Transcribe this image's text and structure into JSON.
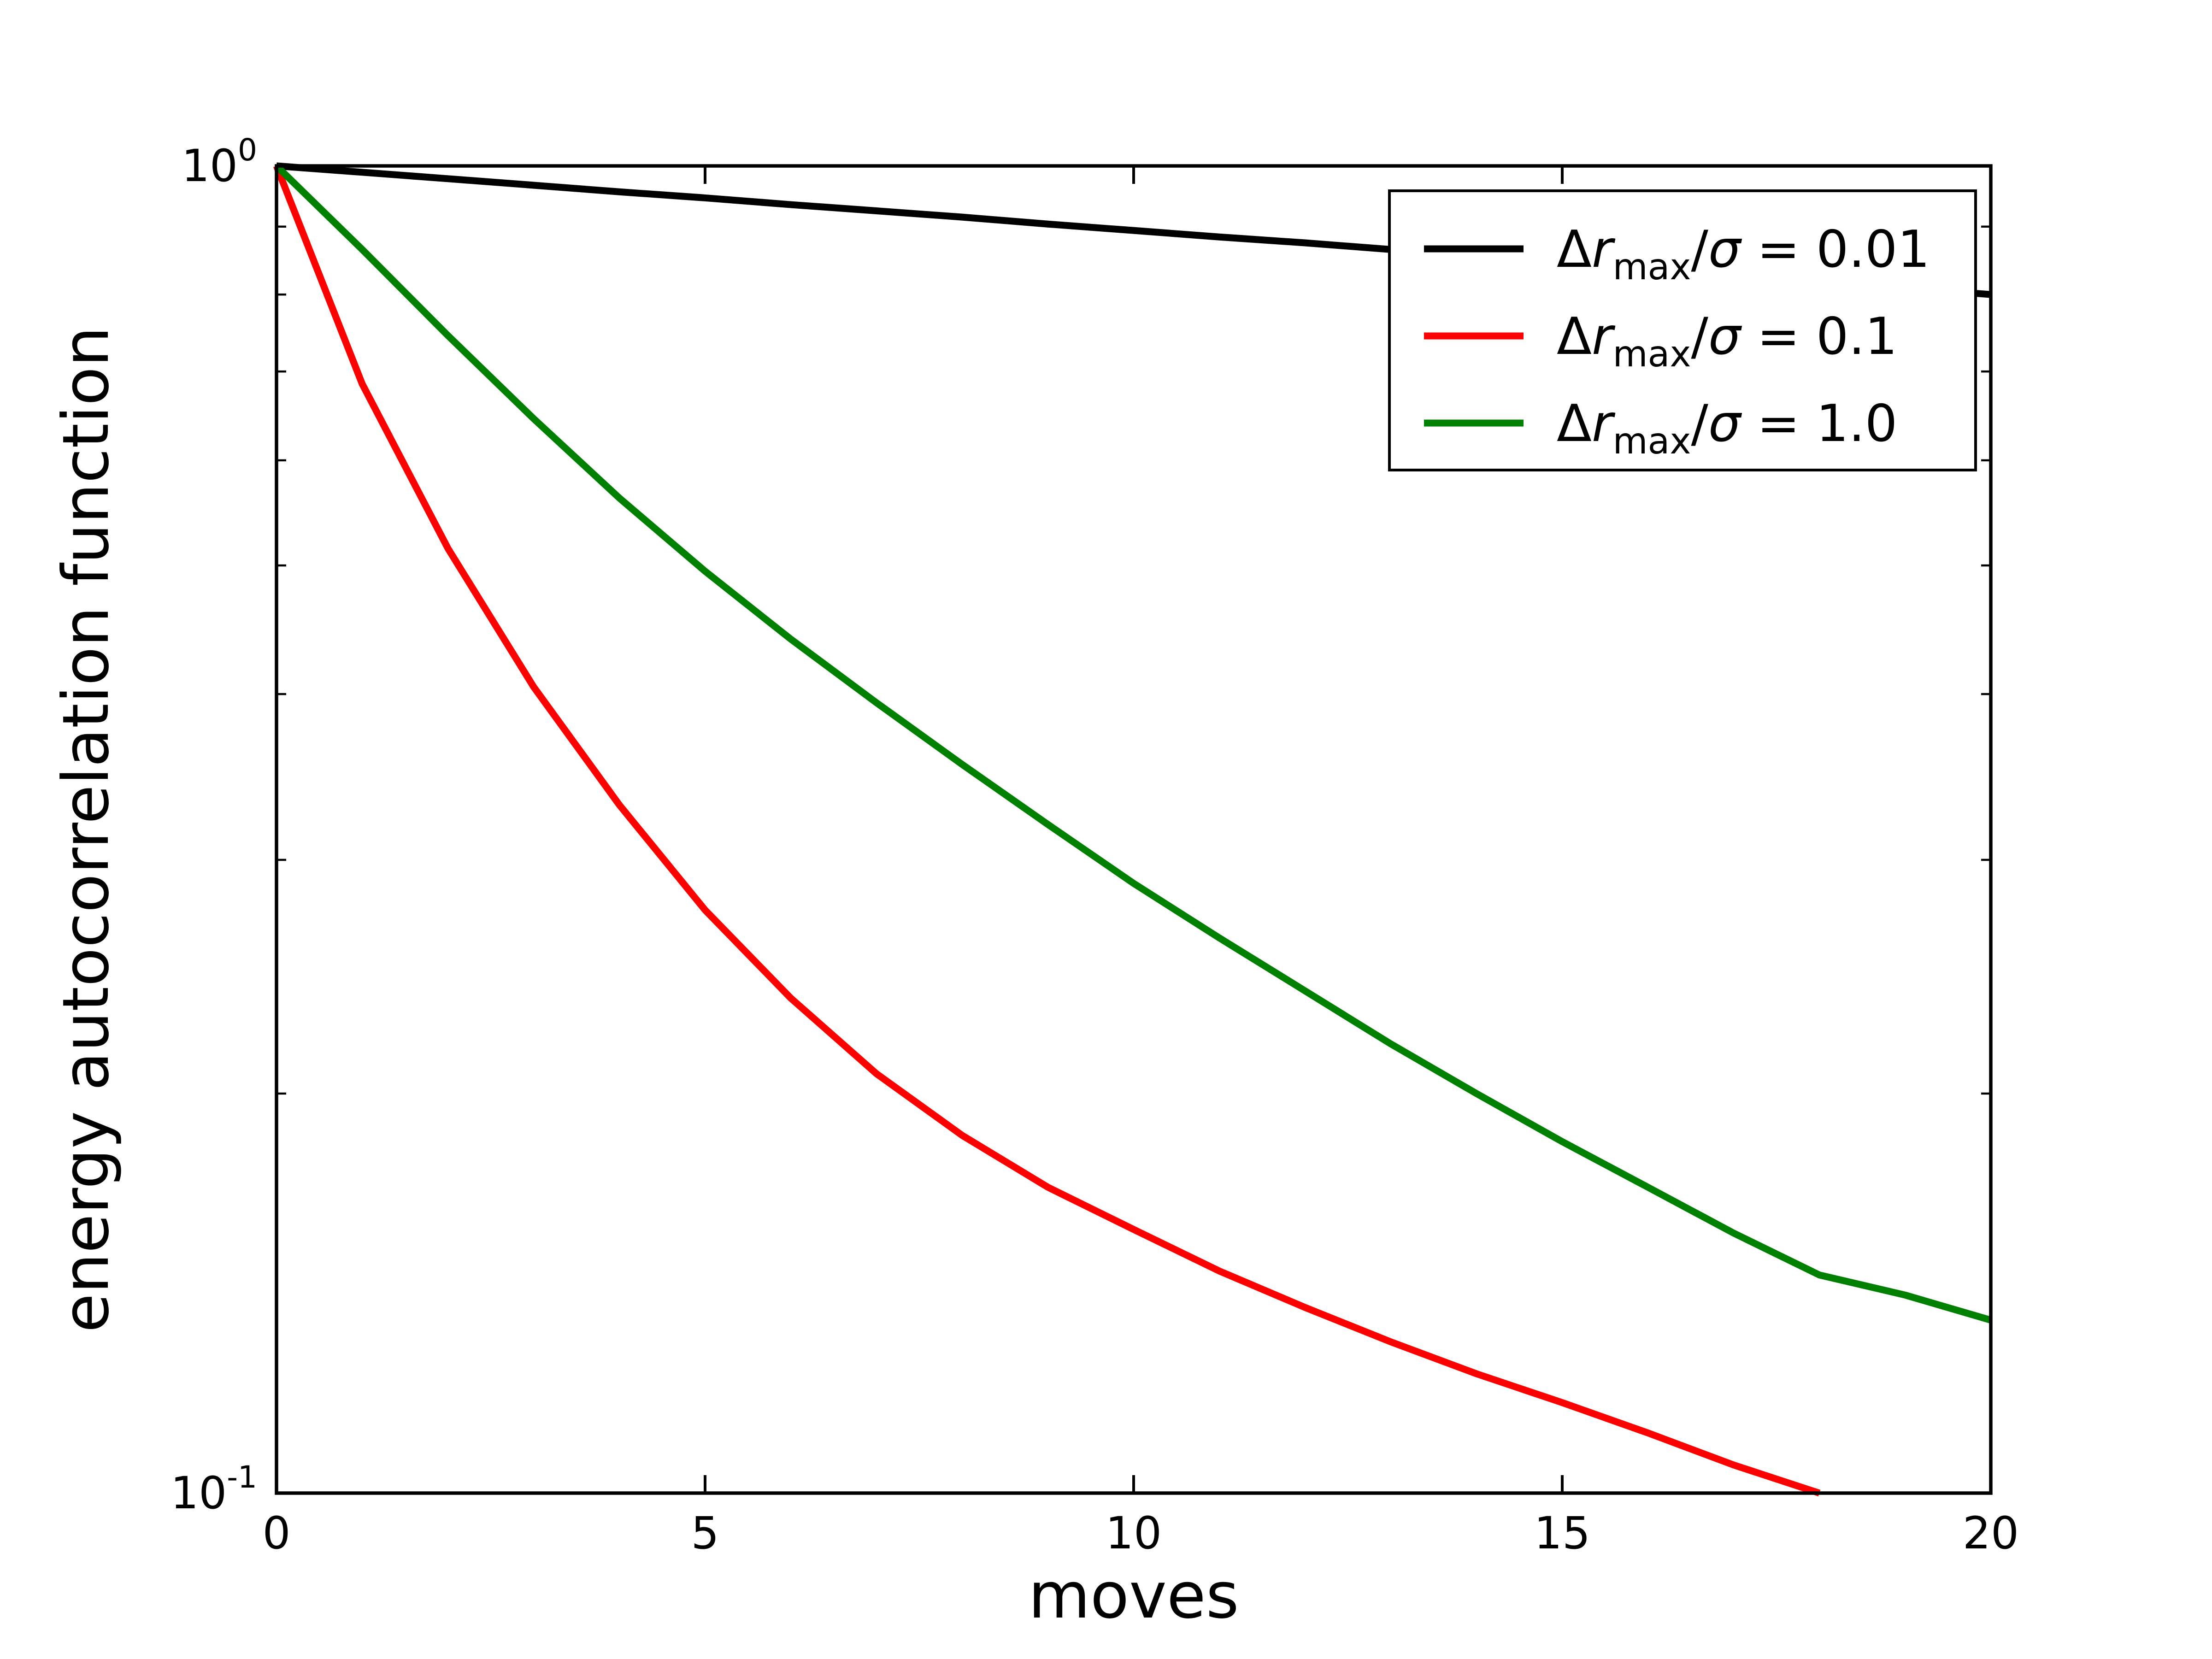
{
  "figure": {
    "background": "#ffffff",
    "axis_color": "#000000"
  },
  "chart_data": {
    "type": "line",
    "title": "",
    "xlabel": "moves",
    "ylabel": "energy autocorrelation function",
    "xlim": [
      0,
      20
    ],
    "ylim": [
      0.1,
      1.0
    ],
    "yscale": "log",
    "grid": false,
    "legend_position": "upper right",
    "x_ticks": [
      0,
      5,
      10,
      15,
      20
    ],
    "y_major_ticks": [
      {
        "value": 1.0,
        "base": "10",
        "exponent": "0"
      },
      {
        "value": 0.1,
        "base": "10",
        "exponent": "-1"
      }
    ],
    "y_minor_ticks": [
      0.2,
      0.3,
      0.4,
      0.5,
      0.6,
      0.7,
      0.8,
      0.9
    ],
    "series": [
      {
        "id": "drmax-0p01",
        "label": "Δr_max/σ = 0.01",
        "label_parts": [
          {
            "t": "Δ",
            "style": "normal"
          },
          {
            "t": "r",
            "style": "italic"
          },
          {
            "t": "max",
            "style": "sub"
          },
          {
            "t": "/",
            "style": "normal"
          },
          {
            "t": "σ",
            "style": "italic"
          },
          {
            "t": " = 0.01",
            "style": "normal"
          }
        ],
        "color": "#000000",
        "x": [
          0,
          1,
          2,
          3,
          4,
          5,
          6,
          7,
          8,
          9,
          10,
          11,
          12,
          13,
          14,
          15,
          16,
          17,
          18,
          19,
          20
        ],
        "values": [
          1.0,
          0.989,
          0.978,
          0.967,
          0.956,
          0.946,
          0.935,
          0.925,
          0.915,
          0.904,
          0.894,
          0.884,
          0.875,
          0.865,
          0.855,
          0.846,
          0.837,
          0.827,
          0.818,
          0.809,
          0.8
        ]
      },
      {
        "id": "drmax-0p1",
        "label": "Δr_max/σ = 0.1",
        "label_parts": [
          {
            "t": "Δ",
            "style": "normal"
          },
          {
            "t": "r",
            "style": "italic"
          },
          {
            "t": "max",
            "style": "sub"
          },
          {
            "t": "/",
            "style": "normal"
          },
          {
            "t": "σ",
            "style": "italic"
          },
          {
            "t": " = 0.1",
            "style": "normal"
          }
        ],
        "color": "#ff0000",
        "x": [
          0,
          1,
          2,
          3,
          4,
          5,
          6,
          7,
          8,
          9,
          10,
          11,
          12,
          13,
          14,
          15,
          16,
          17,
          18
        ],
        "values": [
          1.0,
          0.685,
          0.515,
          0.405,
          0.33,
          0.275,
          0.236,
          0.207,
          0.186,
          0.17,
          0.158,
          0.147,
          0.138,
          0.13,
          0.123,
          0.117,
          0.111,
          0.105,
          0.1
        ]
      },
      {
        "id": "drmax-1p0",
        "label": "Δr_max/σ = 1.0",
        "label_parts": [
          {
            "t": "Δ",
            "style": "normal"
          },
          {
            "t": "r",
            "style": "italic"
          },
          {
            "t": "max",
            "style": "sub"
          },
          {
            "t": "/",
            "style": "normal"
          },
          {
            "t": "σ",
            "style": "italic"
          },
          {
            "t": " = 1.0",
            "style": "normal"
          }
        ],
        "color": "#008000",
        "x": [
          0,
          1,
          2,
          3,
          4,
          5,
          6,
          7,
          8,
          9,
          10,
          11,
          12,
          13,
          14,
          15,
          16,
          17,
          18,
          19,
          20
        ],
        "values": [
          1.0,
          0.865,
          0.745,
          0.645,
          0.562,
          0.495,
          0.44,
          0.394,
          0.354,
          0.319,
          0.288,
          0.262,
          0.239,
          0.218,
          0.2,
          0.184,
          0.17,
          0.157,
          0.146,
          0.141,
          0.135
        ]
      }
    ]
  }
}
